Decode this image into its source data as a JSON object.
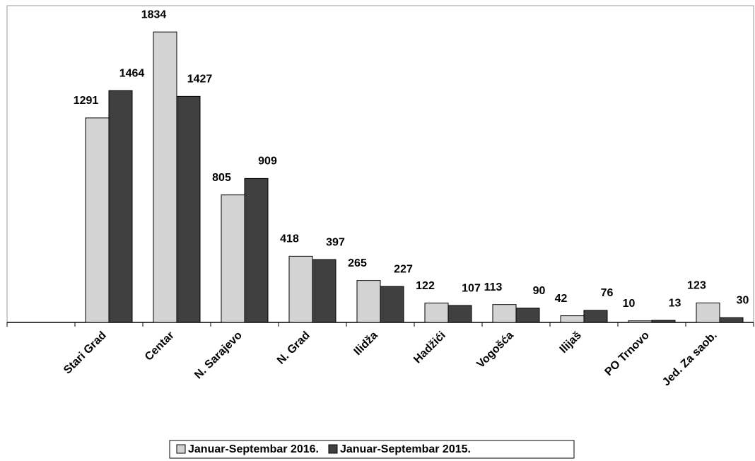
{
  "chart_data": {
    "type": "bar",
    "categories": [
      null,
      "Stari Grad",
      "Centar",
      "N. Sarajevo",
      "N. Grad",
      "Ilidža",
      "Hadžići",
      "Vogošća",
      "Ilijaš",
      "PO Trnovo",
      "Jed. Za saob."
    ],
    "series": [
      {
        "name": "Januar-Septembar 2016.",
        "color": "#d3d3d3",
        "values": [
          null,
          1291,
          1834,
          805,
          418,
          265,
          122,
          113,
          42,
          10,
          123
        ]
      },
      {
        "name": "Januar-Septembar 2015.",
        "color": "#404040",
        "values": [
          null,
          1464,
          1427,
          909,
          397,
          227,
          107,
          90,
          76,
          13,
          30
        ]
      }
    ],
    "ylim": [
      0,
      2000
    ],
    "grid": false,
    "legend": "bottom"
  }
}
